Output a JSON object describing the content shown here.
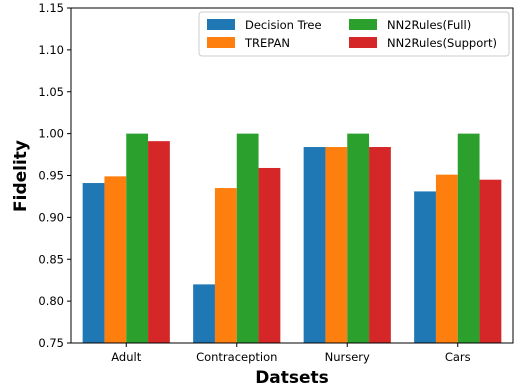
{
  "chart_data": {
    "type": "bar",
    "xlabel": "Datsets",
    "ylabel": "Fidelity",
    "ylim": [
      0.75,
      1.15
    ],
    "yticks": [
      "0.75",
      "0.80",
      "0.85",
      "0.90",
      "0.95",
      "1.00",
      "1.05",
      "1.10",
      "1.15"
    ],
    "categories": [
      "Adult",
      "Contraception",
      "Nursery",
      "Cars"
    ],
    "legend_position": "top-right",
    "legend_columns": 2,
    "grid": false,
    "series": [
      {
        "name": "Decision Tree",
        "color": "#1f77b4",
        "values": [
          0.941,
          0.82,
          0.984,
          0.931
        ]
      },
      {
        "name": "TREPAN",
        "color": "#ff7f0e",
        "values": [
          0.949,
          0.935,
          0.984,
          0.951
        ]
      },
      {
        "name": "NN2Rules(Full)",
        "color": "#2ca02c",
        "values": [
          1.0,
          1.0,
          1.0,
          1.0
        ]
      },
      {
        "name": "NN2Rules(Support)",
        "color": "#d62728",
        "values": [
          0.991,
          0.959,
          0.984,
          0.945
        ]
      }
    ]
  }
}
